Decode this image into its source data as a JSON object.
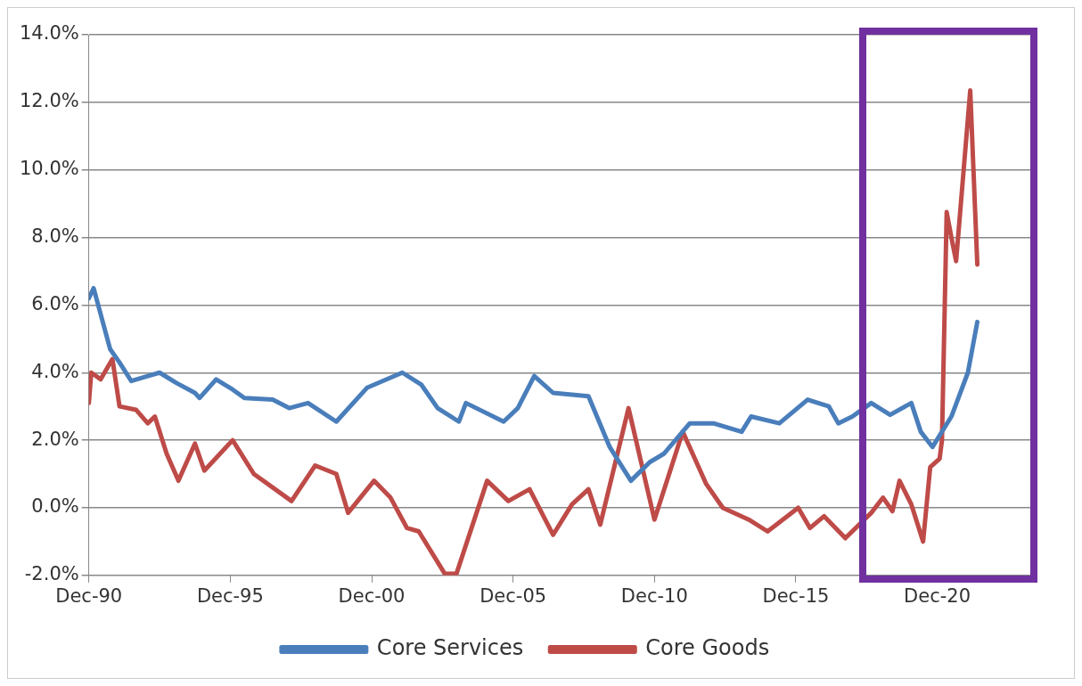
{
  "chart_data": {
    "type": "line",
    "series": [
      {
        "name": "Core Services",
        "color": "#4a7ebb",
        "x": [
          "1990-12",
          "1991-02",
          "1991-09",
          "1992-01",
          "1992-06",
          "1993-01",
          "1993-06",
          "1994-01",
          "1994-09",
          "1994-11",
          "1995-06",
          "1996-01",
          "1996-06",
          "1997-06",
          "1998-01",
          "1998-09",
          "1999-09",
          "2000-10",
          "2002-01",
          "2002-09",
          "2003-04",
          "2004-01",
          "2004-04",
          "2005-08",
          "2006-02",
          "2006-09",
          "2007-05",
          "2008-08",
          "2009-05",
          "2010-02",
          "2010-10",
          "2011-04",
          "2012-03",
          "2013-01",
          "2014-01",
          "2014-05",
          "2015-05",
          "2016-05",
          "2017-02",
          "2017-06",
          "2017-12",
          "2018-08",
          "2019-04",
          "2020-01",
          "2020-05",
          "2020-10",
          "2021-06",
          "2022-01",
          "2022-05"
        ],
        "values": [
          6.2,
          6.5,
          4.7,
          4.3,
          3.75,
          3.9,
          4.0,
          3.7,
          3.4,
          3.25,
          3.8,
          3.5,
          3.25,
          3.2,
          2.95,
          3.1,
          2.55,
          3.55,
          4.0,
          3.65,
          2.95,
          2.55,
          3.1,
          2.55,
          2.95,
          3.9,
          3.4,
          3.3,
          1.8,
          0.8,
          1.35,
          1.6,
          2.5,
          2.5,
          2.25,
          2.7,
          2.5,
          3.2,
          3.0,
          2.5,
          2.7,
          3.1,
          2.75,
          3.1,
          2.25,
          1.8,
          2.7,
          4.0,
          5.5
        ]
      },
      {
        "name": "Core Goods",
        "color": "#be4b48",
        "x": [
          "1990-12",
          "1991-01",
          "1991-05",
          "1991-10",
          "1992-01",
          "1992-08",
          "1993-01",
          "1993-04",
          "1993-09",
          "1994-02",
          "1994-09",
          "1995-01",
          "1996-01",
          "1996-10",
          "1998-02",
          "1998-12",
          "1999-09",
          "2000-02",
          "2001-01",
          "2001-08",
          "2002-03",
          "2002-08",
          "2003-07",
          "2003-12",
          "2005-01",
          "2005-10",
          "2006-07",
          "2007-05",
          "2008-01",
          "2008-08",
          "2009-01",
          "2010-01",
          "2010-12",
          "2011-12",
          "2012-10",
          "2013-05",
          "2014-04",
          "2014-12",
          "2016-01",
          "2016-06",
          "2016-12",
          "2017-09",
          "2018-08",
          "2019-01",
          "2019-05",
          "2019-08",
          "2020-01",
          "2020-06",
          "2020-09",
          "2021-01",
          "2021-02",
          "2021-04",
          "2021-06",
          "2021-08",
          "2022-02",
          "2022-05"
        ],
        "values": [
          3.1,
          4.0,
          3.8,
          4.4,
          3.0,
          2.9,
          2.5,
          2.7,
          1.6,
          0.8,
          1.9,
          1.1,
          2.0,
          1.0,
          0.2,
          1.25,
          1.0,
          -0.15,
          0.8,
          0.3,
          -0.6,
          -0.7,
          -1.95,
          -1.95,
          0.8,
          0.2,
          0.55,
          -0.8,
          0.1,
          0.55,
          -0.5,
          2.95,
          -0.35,
          2.25,
          0.7,
          0.0,
          -0.35,
          -0.7,
          0.0,
          -0.6,
          -0.25,
          -0.9,
          -0.15,
          0.3,
          -0.1,
          0.8,
          0.1,
          -1.0,
          1.2,
          1.45,
          2.0,
          8.75,
          8.0,
          7.3,
          12.35,
          7.2
        ]
      }
    ],
    "xlim": [
      "1990-12",
      "2024-05"
    ],
    "xticks": [
      {
        "value": "1990-12",
        "label": "Dec-90"
      },
      {
        "value": "1995-12",
        "label": "Dec-95"
      },
      {
        "value": "2000-12",
        "label": "Dec-00"
      },
      {
        "value": "2005-12",
        "label": "Dec-05"
      },
      {
        "value": "2010-12",
        "label": "Dec-10"
      },
      {
        "value": "2015-12",
        "label": "Dec-15"
      },
      {
        "value": "2020-12",
        "label": "Dec-20"
      }
    ],
    "ylim": [
      -2,
      14
    ],
    "yticks": [
      {
        "value": -2,
        "label": "-2.0%"
      },
      {
        "value": 0,
        "label": "0.0%"
      },
      {
        "value": 2,
        "label": "2.0%"
      },
      {
        "value": 4,
        "label": "4.0%"
      },
      {
        "value": 6,
        "label": "6.0%"
      },
      {
        "value": 8,
        "label": "8.0%"
      },
      {
        "value": 10,
        "label": "10.0%"
      },
      {
        "value": 12,
        "label": "12.0%"
      },
      {
        "value": 14,
        "label": "14.0%"
      }
    ],
    "grid": "y",
    "legend": "bottom",
    "marker": "none",
    "line_style": "solid"
  }
}
